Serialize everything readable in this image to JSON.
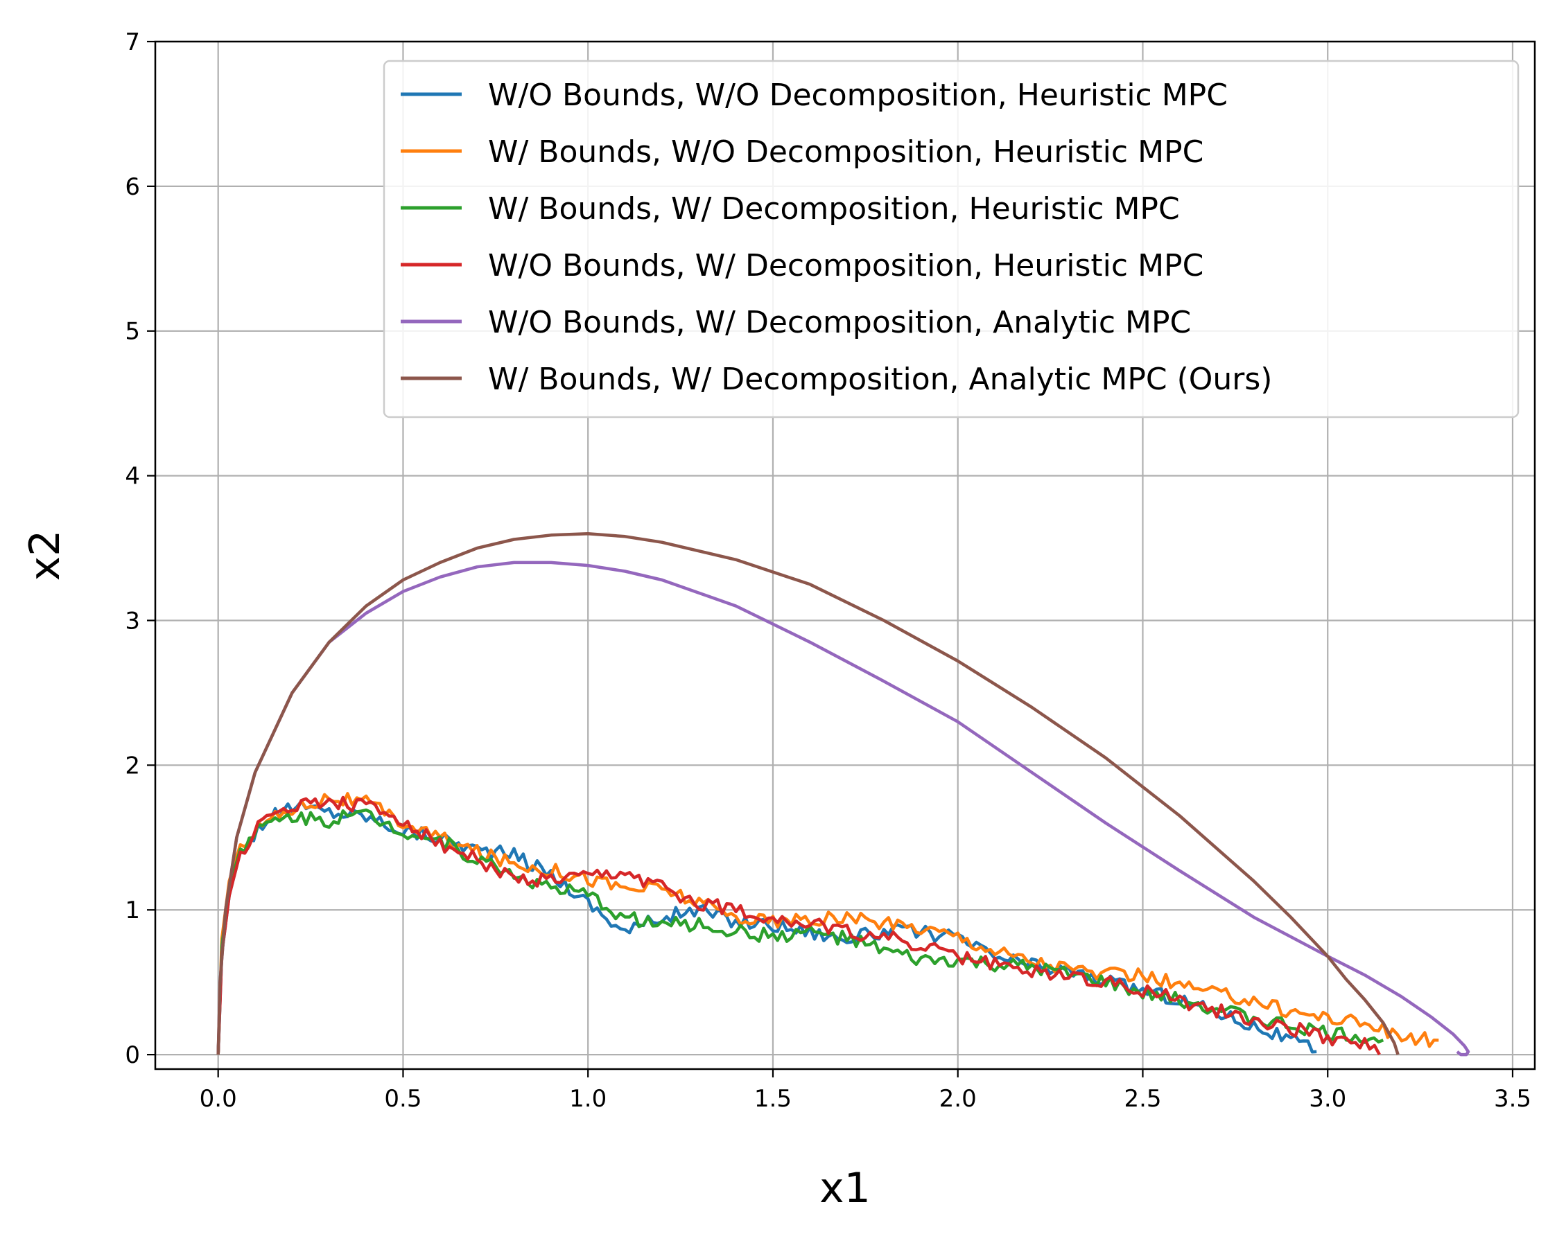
{
  "chart_data": {
    "type": "line",
    "title": "",
    "xlabel": "x1",
    "ylabel": "x2",
    "xlim": [
      -0.17,
      3.56
    ],
    "ylim": [
      -0.1,
      7.0
    ],
    "xticks": [
      "0.0",
      "0.5",
      "1.0",
      "1.5",
      "2.0",
      "2.5",
      "3.0",
      "3.5"
    ],
    "yticks": [
      "0",
      "1",
      "2",
      "3",
      "4",
      "5",
      "6",
      "7"
    ],
    "grid": true,
    "legend_position": "top-right",
    "series": [
      {
        "name": "W/O Bounds, W/O Decomposition, Heuristic MPC",
        "color": "#1f77b4",
        "noise": 0.05,
        "x": [
          0.0,
          0.01,
          0.03,
          0.06,
          0.12,
          0.2,
          0.3,
          0.4,
          0.5,
          0.6,
          0.7,
          0.8,
          0.9,
          1.0,
          1.1,
          1.2,
          1.3,
          1.4,
          1.5,
          1.6,
          1.7,
          1.8,
          1.9,
          2.0,
          2.1,
          2.2,
          2.3,
          2.4,
          2.5,
          2.6,
          2.7,
          2.8,
          2.9,
          2.97
        ],
        "y": [
          0.0,
          0.7,
          1.1,
          1.4,
          1.6,
          1.72,
          1.68,
          1.65,
          1.55,
          1.5,
          1.42,
          1.38,
          1.25,
          1.05,
          0.85,
          0.95,
          1.0,
          0.92,
          0.9,
          0.85,
          0.8,
          0.85,
          0.85,
          0.8,
          0.68,
          0.62,
          0.58,
          0.5,
          0.45,
          0.38,
          0.3,
          0.2,
          0.1,
          0.02
        ]
      },
      {
        "name": "W/ Bounds, W/O Decomposition, Heuristic MPC",
        "color": "#ff7f0e",
        "noise": 0.05,
        "x": [
          0.0,
          0.01,
          0.03,
          0.06,
          0.12,
          0.2,
          0.3,
          0.4,
          0.5,
          0.6,
          0.7,
          0.8,
          0.9,
          1.0,
          1.1,
          1.2,
          1.3,
          1.4,
          1.5,
          1.6,
          1.7,
          1.8,
          1.9,
          2.0,
          2.1,
          2.2,
          2.3,
          2.4,
          2.5,
          2.6,
          2.7,
          2.8,
          2.9,
          3.0,
          3.1,
          3.2,
          3.3
        ],
        "y": [
          0.0,
          0.8,
          1.2,
          1.45,
          1.6,
          1.7,
          1.78,
          1.74,
          1.6,
          1.5,
          1.4,
          1.32,
          1.28,
          1.22,
          1.15,
          1.15,
          1.05,
          0.95,
          0.92,
          0.92,
          0.95,
          0.9,
          0.88,
          0.82,
          0.72,
          0.65,
          0.6,
          0.55,
          0.55,
          0.48,
          0.42,
          0.38,
          0.3,
          0.26,
          0.22,
          0.12,
          0.1
        ]
      },
      {
        "name": "W/ Bounds, W/ Decomposition, Heuristic MPC",
        "color": "#2ca02c",
        "noise": 0.05,
        "x": [
          0.0,
          0.01,
          0.03,
          0.06,
          0.12,
          0.2,
          0.3,
          0.4,
          0.5,
          0.6,
          0.7,
          0.8,
          0.9,
          1.0,
          1.1,
          1.2,
          1.3,
          1.4,
          1.5,
          1.6,
          1.7,
          1.8,
          1.9,
          2.0,
          2.1,
          2.2,
          2.3,
          2.4,
          2.5,
          2.6,
          2.7,
          2.8,
          2.9,
          3.0,
          3.1,
          3.15
        ],
        "y": [
          0.0,
          0.75,
          1.15,
          1.42,
          1.58,
          1.65,
          1.62,
          1.66,
          1.55,
          1.48,
          1.35,
          1.25,
          1.15,
          1.1,
          0.95,
          0.9,
          0.9,
          0.85,
          0.82,
          0.85,
          0.8,
          0.72,
          0.65,
          0.65,
          0.62,
          0.6,
          0.55,
          0.5,
          0.42,
          0.38,
          0.32,
          0.25,
          0.2,
          0.15,
          0.12,
          0.1
        ]
      },
      {
        "name": "W/O Bounds, W/ Decomposition, Heuristic MPC",
        "color": "#d62728",
        "noise": 0.05,
        "x": [
          0.0,
          0.01,
          0.03,
          0.06,
          0.12,
          0.2,
          0.3,
          0.4,
          0.5,
          0.6,
          0.7,
          0.8,
          0.9,
          1.0,
          1.1,
          1.2,
          1.3,
          1.4,
          1.5,
          1.6,
          1.7,
          1.8,
          1.9,
          2.0,
          2.1,
          2.2,
          2.3,
          2.4,
          2.5,
          2.6,
          2.7,
          2.8,
          2.9,
          3.0,
          3.1,
          3.14
        ],
        "y": [
          0.0,
          0.7,
          1.1,
          1.4,
          1.6,
          1.73,
          1.75,
          1.72,
          1.62,
          1.45,
          1.35,
          1.2,
          1.2,
          1.22,
          1.25,
          1.15,
          1.05,
          1.0,
          0.95,
          0.9,
          0.85,
          0.82,
          0.75,
          0.68,
          0.62,
          0.58,
          0.55,
          0.5,
          0.45,
          0.38,
          0.3,
          0.25,
          0.18,
          0.12,
          0.08,
          0.0
        ]
      },
      {
        "name": "W/O Bounds, W/ Decomposition, Analytic MPC",
        "color": "#9467bd",
        "noise": 0,
        "x": [
          0.0,
          0.005,
          0.02,
          0.05,
          0.1,
          0.2,
          0.3,
          0.4,
          0.5,
          0.6,
          0.7,
          0.8,
          0.9,
          1.0,
          1.1,
          1.2,
          1.4,
          1.6,
          1.8,
          2.0,
          2.2,
          2.4,
          2.6,
          2.8,
          3.0,
          3.1,
          3.2,
          3.28,
          3.34,
          3.37,
          3.38,
          3.375,
          3.36,
          3.35
        ],
        "y": [
          0.0,
          0.5,
          1.0,
          1.5,
          1.95,
          2.5,
          2.85,
          3.05,
          3.2,
          3.3,
          3.37,
          3.4,
          3.4,
          3.38,
          3.34,
          3.28,
          3.1,
          2.85,
          2.58,
          2.3,
          1.95,
          1.6,
          1.27,
          0.95,
          0.68,
          0.55,
          0.4,
          0.26,
          0.14,
          0.06,
          0.02,
          0.0,
          0.0,
          0.02
        ]
      },
      {
        "name": "W/ Bounds, W/ Decomposition, Analytic MPC (Ours)",
        "color": "#8c564b",
        "noise": 0,
        "x": [
          0.0,
          0.005,
          0.02,
          0.05,
          0.1,
          0.2,
          0.3,
          0.4,
          0.5,
          0.6,
          0.7,
          0.8,
          0.9,
          1.0,
          1.1,
          1.2,
          1.4,
          1.6,
          1.8,
          2.0,
          2.2,
          2.4,
          2.6,
          2.8,
          2.9,
          3.0,
          3.05,
          3.1,
          3.15,
          3.18,
          3.19
        ],
        "y": [
          0.0,
          0.5,
          1.0,
          1.5,
          1.95,
          2.5,
          2.85,
          3.1,
          3.28,
          3.4,
          3.5,
          3.56,
          3.59,
          3.6,
          3.58,
          3.54,
          3.42,
          3.25,
          3.0,
          2.72,
          2.4,
          2.05,
          1.65,
          1.2,
          0.95,
          0.68,
          0.52,
          0.38,
          0.22,
          0.08,
          0.0
        ]
      }
    ]
  }
}
